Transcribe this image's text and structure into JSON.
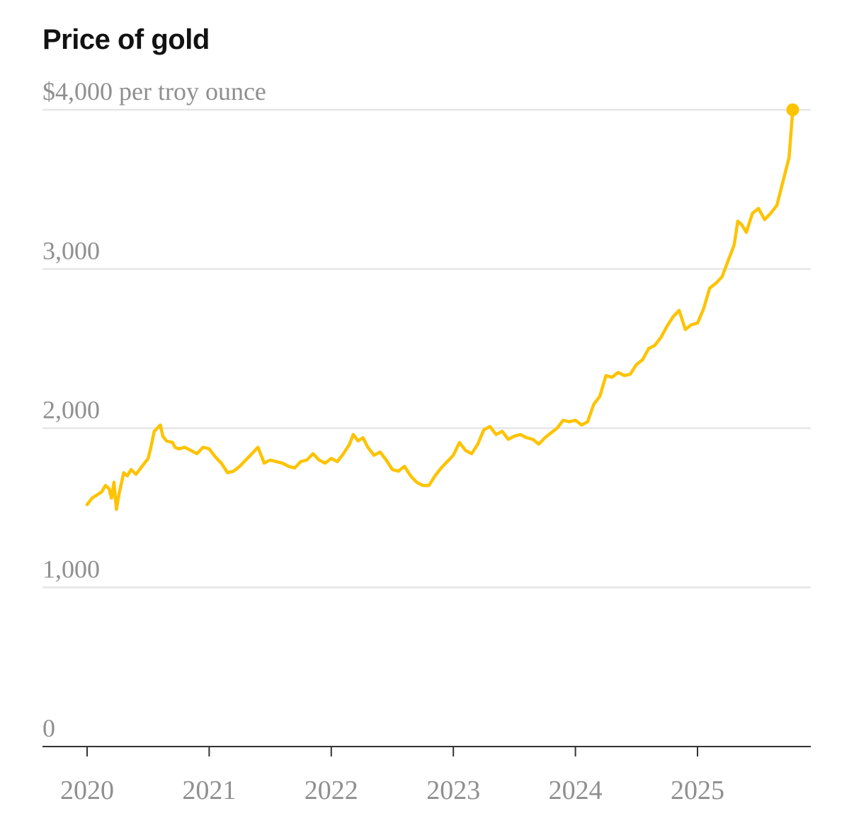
{
  "chart_data": {
    "type": "line",
    "title": "Price of gold",
    "y_unit_label": "$4,000 per troy ounce",
    "ylim": [
      0,
      4000
    ],
    "y_ticks": [
      {
        "value": 0,
        "label": "0"
      },
      {
        "value": 1000,
        "label": "1,000"
      },
      {
        "value": 2000,
        "label": "2,000"
      },
      {
        "value": 3000,
        "label": "3,000"
      },
      {
        "value": 4000,
        "label": "$4,000 per troy ounce"
      }
    ],
    "x_ticks": [
      {
        "value": 2020,
        "label": "2020"
      },
      {
        "value": 2021,
        "label": "2021"
      },
      {
        "value": 2022,
        "label": "2022"
      },
      {
        "value": 2023,
        "label": "2023"
      },
      {
        "value": 2024,
        "label": "2024"
      },
      {
        "value": 2025,
        "label": "2025"
      }
    ],
    "grid": true,
    "line_color": "#fdc300",
    "series": [
      {
        "x": [
          2020.0,
          2020.04,
          2020.08,
          2020.12,
          2020.15,
          2020.18,
          2020.2,
          2020.22,
          2020.24,
          2020.26,
          2020.3,
          2020.33,
          2020.36,
          2020.4,
          2020.45,
          2020.5,
          2020.52,
          2020.55,
          2020.6,
          2020.62,
          2020.65,
          2020.7,
          2020.72,
          2020.75,
          2020.8,
          2020.85,
          2020.9,
          2020.95,
          2021.0,
          2021.05,
          2021.1,
          2021.15,
          2021.2,
          2021.25,
          2021.3,
          2021.35,
          2021.4,
          2021.45,
          2021.5,
          2021.55,
          2021.6,
          2021.65,
          2021.7,
          2021.75,
          2021.8,
          2021.85,
          2021.9,
          2021.95,
          2022.0,
          2022.05,
          2022.1,
          2022.15,
          2022.18,
          2022.22,
          2022.26,
          2022.3,
          2022.35,
          2022.4,
          2022.45,
          2022.5,
          2022.55,
          2022.6,
          2022.65,
          2022.7,
          2022.75,
          2022.8,
          2022.85,
          2022.9,
          2022.95,
          2023.0,
          2023.05,
          2023.1,
          2023.15,
          2023.2,
          2023.25,
          2023.3,
          2023.35,
          2023.4,
          2023.45,
          2023.5,
          2023.55,
          2023.6,
          2023.65,
          2023.7,
          2023.75,
          2023.8,
          2023.85,
          2023.9,
          2023.95,
          2024.0,
          2024.05,
          2024.1,
          2024.15,
          2024.2,
          2024.25,
          2024.3,
          2024.35,
          2024.4,
          2024.45,
          2024.5,
          2024.55,
          2024.6,
          2024.65,
          2024.7,
          2024.75,
          2024.8,
          2024.85,
          2024.9,
          2024.95,
          2025.0,
          2025.05,
          2025.1,
          2025.15,
          2025.2,
          2025.25,
          2025.3,
          2025.33,
          2025.36,
          2025.4,
          2025.45,
          2025.5,
          2025.55,
          2025.6,
          2025.65,
          2025.7,
          2025.75,
          2025.78
        ],
        "y": [
          1520,
          1560,
          1580,
          1600,
          1640,
          1620,
          1560,
          1660,
          1490,
          1580,
          1720,
          1700,
          1740,
          1710,
          1760,
          1810,
          1870,
          1980,
          2020,
          1950,
          1920,
          1910,
          1880,
          1870,
          1880,
          1860,
          1840,
          1880,
          1870,
          1820,
          1780,
          1720,
          1730,
          1760,
          1800,
          1840,
          1880,
          1780,
          1800,
          1790,
          1780,
          1760,
          1750,
          1790,
          1800,
          1840,
          1800,
          1780,
          1810,
          1790,
          1840,
          1900,
          1960,
          1920,
          1940,
          1880,
          1830,
          1850,
          1800,
          1740,
          1730,
          1760,
          1700,
          1660,
          1640,
          1640,
          1700,
          1750,
          1790,
          1830,
          1910,
          1860,
          1840,
          1900,
          1990,
          2010,
          1960,
          1980,
          1930,
          1950,
          1960,
          1940,
          1930,
          1900,
          1940,
          1970,
          2000,
          2050,
          2040,
          2050,
          2020,
          2040,
          2150,
          2200,
          2330,
          2320,
          2350,
          2330,
          2340,
          2400,
          2430,
          2500,
          2520,
          2570,
          2640,
          2700,
          2740,
          2620,
          2650,
          2660,
          2750,
          2880,
          2910,
          2950,
          3050,
          3150,
          3300,
          3280,
          3230,
          3350,
          3380,
          3310,
          3350,
          3400,
          3550,
          3700,
          4000
        ]
      }
    ]
  }
}
